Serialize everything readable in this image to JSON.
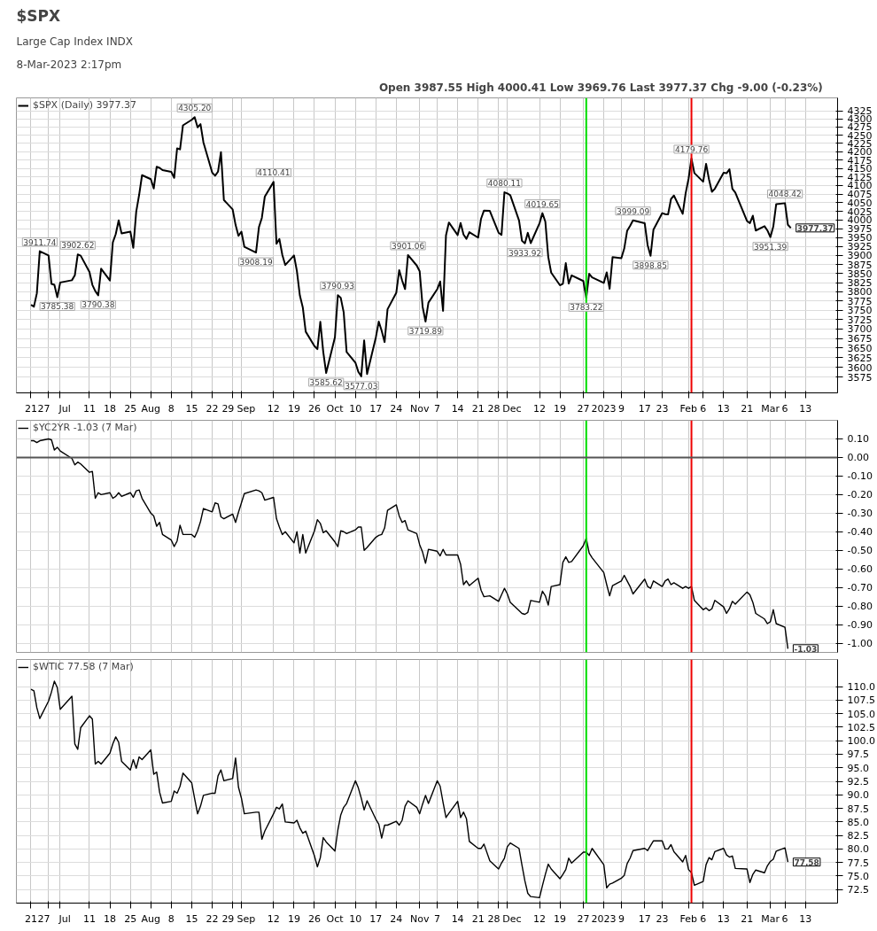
{
  "chart_data": [
    {
      "type": "line",
      "title": "$SPX",
      "subtitle": "8-Mar-2023 2:17pm",
      "log": true,
      "grid": true,
      "legend": "top left",
      "annotations": [
        "Large Cap Index INDX",
        "Open 3987.55  High 4000.41  Low 3969.76  Last 3977.37  Chg -9.00 (-0.23%)",
        {
          "text": "3911.74",
          "x": "2022-06-24",
          "y": 3911.74
        },
        {
          "text": "3785.38",
          "x": "2022-06-30",
          "y": 3785.38
        },
        {
          "text": "3902.62",
          "x": "2022-07-07",
          "y": 3902.62
        },
        {
          "text": "3790.38",
          "x": "2022-07-14",
          "y": 3790.38
        },
        {
          "text": "4305.20",
          "x": "2022-08-16",
          "y": 4305.2
        },
        {
          "text": "3908.19",
          "x": "2022-09-06",
          "y": 3908.19
        },
        {
          "text": "4110.41",
          "x": "2022-09-12",
          "y": 4110.41
        },
        {
          "text": "3585.62",
          "x": "2022-09-30",
          "y": 3585.62
        },
        {
          "text": "3790.93",
          "x": "2022-10-04",
          "y": 3790.93
        },
        {
          "text": "3577.03",
          "x": "2022-10-12",
          "y": 3577.03
        },
        {
          "text": "3901.06",
          "x": "2022-10-28",
          "y": 3901.06
        },
        {
          "text": "3719.89",
          "x": "2022-11-03",
          "y": 3719.89
        },
        {
          "text": "4080.11",
          "x": "2022-11-30",
          "y": 4080.11
        },
        {
          "text": "3933.92",
          "x": "2022-12-07",
          "y": 3933.92
        },
        {
          "text": "4019.65",
          "x": "2022-12-13",
          "y": 4019.65
        },
        {
          "text": "3783.22",
          "x": "2022-12-28",
          "y": 3783.22
        },
        {
          "text": "3999.09",
          "x": "2023-01-13",
          "y": 3999.09
        },
        {
          "text": "3898.85",
          "x": "2023-01-19",
          "y": 3898.85
        },
        {
          "text": "4179.76",
          "x": "2023-02-02",
          "y": 4179.76
        },
        {
          "text": "3951.39",
          "x": "2023-03-01",
          "y": 3951.39
        },
        {
          "text": "4048.42",
          "x": "2023-03-06",
          "y": 4048.42
        },
        {
          "text": "3977.37",
          "x": "2023-03-08",
          "y": 3977.37
        }
      ],
      "xlim": [
        "2022-06-16",
        "2023-03-24"
      ],
      "ylim": [
        3535,
        4365
      ],
      "xticks": [
        {
          "value": "2022-06-21",
          "label": "21"
        },
        {
          "value": "2022-06-27",
          "label": "27"
        },
        {
          "value": "2022-07-01",
          "label": "Jul"
        },
        {
          "value": "2022-07-11",
          "label": "11"
        },
        {
          "value": "2022-07-18",
          "label": "18"
        },
        {
          "value": "2022-07-25",
          "label": "25"
        },
        {
          "value": "2022-08-01",
          "label": "Aug"
        },
        {
          "value": "2022-08-08",
          "label": "8"
        },
        {
          "value": "2022-08-15",
          "label": "15"
        },
        {
          "value": "2022-08-22",
          "label": "22"
        },
        {
          "value": "2022-08-29",
          "label": "29"
        },
        {
          "value": "2022-09-01",
          "label": "Sep"
        },
        {
          "value": "2022-09-12",
          "label": "12"
        },
        {
          "value": "2022-09-19",
          "label": "19"
        },
        {
          "value": "2022-09-26",
          "label": "26"
        },
        {
          "value": "2022-10-03",
          "label": "Oct"
        },
        {
          "value": "2022-10-10",
          "label": "10"
        },
        {
          "value": "2022-10-17",
          "label": "17"
        },
        {
          "value": "2022-10-24",
          "label": "24"
        },
        {
          "value": "2022-11-01",
          "label": "Nov"
        },
        {
          "value": "2022-11-07",
          "label": "7"
        },
        {
          "value": "2022-11-14",
          "label": "14"
        },
        {
          "value": "2022-11-21",
          "label": "21"
        },
        {
          "value": "2022-11-28",
          "label": "28"
        },
        {
          "value": "2022-12-01",
          "label": "Dec"
        },
        {
          "value": "2022-12-12",
          "label": "12"
        },
        {
          "value": "2022-12-19",
          "label": "19"
        },
        {
          "value": "2022-12-27",
          "label": "27"
        },
        {
          "value": "2023-01-03",
          "label": "2023"
        },
        {
          "value": "2023-01-09",
          "label": "9"
        },
        {
          "value": "2023-01-17",
          "label": "17"
        },
        {
          "value": "2023-01-23",
          "label": "23"
        },
        {
          "value": "2023-02-01",
          "label": "Feb"
        },
        {
          "value": "2023-02-06",
          "label": "6"
        },
        {
          "value": "2023-02-13",
          "label": "13"
        },
        {
          "value": "2023-02-21",
          "label": "21"
        },
        {
          "value": "2023-03-01",
          "label": "Mar"
        },
        {
          "value": "2023-03-06",
          "label": "6"
        },
        {
          "value": "2023-03-13",
          "label": "13"
        }
      ],
      "yticks": [
        3575,
        3600,
        3625,
        3650,
        3675,
        3700,
        3725,
        3750,
        3775,
        3800,
        3825,
        3850,
        3875,
        3900,
        3925,
        3950,
        3975,
        4000,
        4025,
        4050,
        4075,
        4100,
        4125,
        4150,
        4175,
        4200,
        4225,
        4250,
        4275,
        4300,
        4325
      ],
      "ref_lines": [
        {
          "axis": "x",
          "value": "2022-12-28",
          "color": "#00dd00"
        },
        {
          "axis": "x",
          "value": "2023-02-02",
          "color": "#ee0000"
        }
      ],
      "x": [
        "2022-06-21",
        "2022-06-22",
        "2022-06-23",
        "2022-06-24",
        "2022-06-27",
        "2022-06-28",
        "2022-06-29",
        "2022-06-30",
        "2022-07-01",
        "2022-07-05",
        "2022-07-06",
        "2022-07-07",
        "2022-07-08",
        "2022-07-11",
        "2022-07-12",
        "2022-07-13",
        "2022-07-14",
        "2022-07-15",
        "2022-07-18",
        "2022-07-19",
        "2022-07-20",
        "2022-07-21",
        "2022-07-22",
        "2022-07-25",
        "2022-07-26",
        "2022-07-27",
        "2022-07-28",
        "2022-07-29",
        "2022-08-01",
        "2022-08-02",
        "2022-08-03",
        "2022-08-04",
        "2022-08-05",
        "2022-08-08",
        "2022-08-09",
        "2022-08-10",
        "2022-08-11",
        "2022-08-12",
        "2022-08-15",
        "2022-08-16",
        "2022-08-17",
        "2022-08-18",
        "2022-08-19",
        "2022-08-22",
        "2022-08-23",
        "2022-08-24",
        "2022-08-25",
        "2022-08-26",
        "2022-08-29",
        "2022-08-30",
        "2022-08-31",
        "2022-09-01",
        "2022-09-02",
        "2022-09-06",
        "2022-09-07",
        "2022-09-08",
        "2022-09-09",
        "2022-09-12",
        "2022-09-13",
        "2022-09-14",
        "2022-09-15",
        "2022-09-16",
        "2022-09-19",
        "2022-09-20",
        "2022-09-21",
        "2022-09-22",
        "2022-09-23",
        "2022-09-26",
        "2022-09-27",
        "2022-09-28",
        "2022-09-29",
        "2022-09-30",
        "2022-10-03",
        "2022-10-04",
        "2022-10-05",
        "2022-10-06",
        "2022-10-07",
        "2022-10-10",
        "2022-10-11",
        "2022-10-12",
        "2022-10-13",
        "2022-10-14",
        "2022-10-17",
        "2022-10-18",
        "2022-10-19",
        "2022-10-20",
        "2022-10-21",
        "2022-10-24",
        "2022-10-25",
        "2022-10-26",
        "2022-10-27",
        "2022-10-28",
        "2022-10-31",
        "2022-11-01",
        "2022-11-02",
        "2022-11-03",
        "2022-11-04",
        "2022-11-07",
        "2022-11-08",
        "2022-11-09",
        "2022-11-10",
        "2022-11-11",
        "2022-11-14",
        "2022-11-15",
        "2022-11-16",
        "2022-11-17",
        "2022-11-18",
        "2022-11-21",
        "2022-11-22",
        "2022-11-23",
        "2022-11-25",
        "2022-11-28",
        "2022-11-29",
        "2022-11-30",
        "2022-12-01",
        "2022-12-02",
        "2022-12-05",
        "2022-12-06",
        "2022-12-07",
        "2022-12-08",
        "2022-12-09",
        "2022-12-12",
        "2022-12-13",
        "2022-12-14",
        "2022-12-15",
        "2022-12-16",
        "2022-12-19",
        "2022-12-20",
        "2022-12-21",
        "2022-12-22",
        "2022-12-23",
        "2022-12-27",
        "2022-12-28",
        "2022-12-29",
        "2022-12-30",
        "2023-01-03",
        "2023-01-04",
        "2023-01-05",
        "2023-01-06",
        "2023-01-09",
        "2023-01-10",
        "2023-01-11",
        "2023-01-12",
        "2023-01-13",
        "2023-01-17",
        "2023-01-18",
        "2023-01-19",
        "2023-01-20",
        "2023-01-23",
        "2023-01-24",
        "2023-01-25",
        "2023-01-26",
        "2023-01-27",
        "2023-01-30",
        "2023-01-31",
        "2023-02-01",
        "2023-02-02",
        "2023-02-03",
        "2023-02-06",
        "2023-02-07",
        "2023-02-08",
        "2023-02-09",
        "2023-02-10",
        "2023-02-13",
        "2023-02-14",
        "2023-02-15",
        "2023-02-16",
        "2023-02-17",
        "2023-02-21",
        "2023-02-22",
        "2023-02-23",
        "2023-02-24",
        "2023-02-27",
        "2023-02-28",
        "2023-03-01",
        "2023-03-02",
        "2023-03-03",
        "2023-03-06",
        "2023-03-07",
        "2023-03-08"
      ],
      "series": [
        {
          "name": "$SPX (Daily) 3977.37",
          "color": "#000000",
          "values": [
            3764.79,
            3759.89,
            3795.73,
            3911.74,
            3900.11,
            3821.55,
            3818.83,
            3785.38,
            3825.33,
            3831.39,
            3845.08,
            3902.62,
            3899.38,
            3854.43,
            3818.8,
            3801.78,
            3790.38,
            3863.16,
            3830.85,
            3936.69,
            3959.9,
            3998.95,
            3961.63,
            3966.84,
            3921.05,
            4023.61,
            4072.43,
            4130.29,
            4118.63,
            4091.19,
            4155.17,
            4151.94,
            4145.19,
            4140.06,
            4122.47,
            4210.24,
            4207.27,
            4280.15,
            4297.14,
            4305.2,
            4274.04,
            4283.74,
            4228.48,
            4137.99,
            4128.73,
            4140.77,
            4199.12,
            4057.66,
            4030.61,
            3986.16,
            3955.0,
            3966.85,
            3924.26,
            3908.19,
            3979.87,
            4006.18,
            4067.36,
            4110.41,
            3932.69,
            3946.01,
            3901.35,
            3873.33,
            3899.89,
            3855.93,
            3789.93,
            3757.99,
            3693.23,
            3655.04,
            3647.29,
            3719.04,
            3640.47,
            3585.62,
            3678.43,
            3790.93,
            3783.28,
            3744.52,
            3639.66,
            3612.39,
            3588.84,
            3577.03,
            3669.91,
            3583.07,
            3677.95,
            3719.98,
            3695.16,
            3665.78,
            3752.75,
            3797.34,
            3859.11,
            3830.6,
            3807.3,
            3901.06,
            3871.98,
            3856.1,
            3759.69,
            3719.89,
            3770.55,
            3806.8,
            3828.11,
            3748.57,
            3956.37,
            3992.93,
            3957.25,
            3991.73,
            3958.79,
            3946.56,
            3965.34,
            3949.94,
            4003.58,
            4027.26,
            4026.12,
            3963.94,
            3957.63,
            4080.11,
            4076.57,
            4071.7,
            3998.84,
            3941.26,
            3933.92,
            3963.51,
            3934.38,
            3990.56,
            4019.65,
            3995.32,
            3895.75,
            3852.36,
            3817.66,
            3821.62,
            3878.44,
            3822.39,
            3844.82,
            3829.25,
            3783.22,
            3849.28,
            3839.5,
            3824.14,
            3852.97,
            3808.1,
            3895.08,
            3892.09,
            3919.25,
            3969.61,
            3983.17,
            3999.09,
            3990.97,
            3928.86,
            3898.85,
            3972.61,
            4019.81,
            4016.95,
            4016.22,
            4060.43,
            4070.56,
            4017.77,
            4076.6,
            4119.21,
            4179.76,
            4136.48,
            4111.08,
            4164.0,
            4117.86,
            4081.5,
            4090.46,
            4137.29,
            4136.13,
            4147.6,
            4090.41,
            4079.09,
            3997.34,
            3991.05,
            4012.32,
            3970.04,
            3982.24,
            3970.15,
            3951.39,
            3981.35,
            4045.64,
            4048.42,
            3986.37,
            3977.37
          ]
        }
      ]
    },
    {
      "type": "line",
      "grid": true,
      "legend": "top left",
      "tick_labels": "y",
      "annotations": [
        {
          "text": "-1.03",
          "x": "2023-03-07",
          "y": -1.03
        }
      ],
      "xlim": [
        "2022-06-16",
        "2023-03-24"
      ],
      "ylim": [
        -1.05,
        0.2
      ],
      "xticks": [
        {
          "value": "2022-06-21",
          "label": null
        },
        {
          "value": "2022-06-27",
          "label": null
        },
        {
          "value": "2022-07-01",
          "label": null
        },
        {
          "value": "2022-07-11",
          "label": null
        },
        {
          "value": "2022-07-18",
          "label": null
        },
        {
          "value": "2022-07-25",
          "label": null
        },
        {
          "value": "2022-08-01",
          "label": null
        },
        {
          "value": "2022-08-08",
          "label": null
        },
        {
          "value": "2022-08-15",
          "label": null
        },
        {
          "value": "2022-08-22",
          "label": null
        },
        {
          "value": "2022-08-29",
          "label": null
        },
        {
          "value": "2022-09-01",
          "label": null
        },
        {
          "value": "2022-09-12",
          "label": null
        },
        {
          "value": "2022-09-19",
          "label": null
        },
        {
          "value": "2022-09-26",
          "label": null
        },
        {
          "value": "2022-10-03",
          "label": null
        },
        {
          "value": "2022-10-10",
          "label": null
        },
        {
          "value": "2022-10-17",
          "label": null
        },
        {
          "value": "2022-10-24",
          "label": null
        },
        {
          "value": "2022-11-01",
          "label": null
        },
        {
          "value": "2022-11-07",
          "label": null
        },
        {
          "value": "2022-11-14",
          "label": null
        },
        {
          "value": "2022-11-21",
          "label": null
        },
        {
          "value": "2022-11-28",
          "label": null
        },
        {
          "value": "2022-12-01",
          "label": null
        },
        {
          "value": "2022-12-12",
          "label": null
        },
        {
          "value": "2022-12-19",
          "label": null
        },
        {
          "value": "2022-12-27",
          "label": null
        },
        {
          "value": "2023-01-03",
          "label": null
        },
        {
          "value": "2023-01-09",
          "label": null
        },
        {
          "value": "2023-01-17",
          "label": null
        },
        {
          "value": "2023-01-23",
          "label": null
        },
        {
          "value": "2023-02-01",
          "label": null
        },
        {
          "value": "2023-02-06",
          "label": null
        },
        {
          "value": "2023-02-13",
          "label": null
        },
        {
          "value": "2023-02-21",
          "label": null
        },
        {
          "value": "2023-03-01",
          "label": null
        },
        {
          "value": "2023-03-06",
          "label": null
        },
        {
          "value": "2023-03-13",
          "label": null
        }
      ],
      "yticks": [
        {
          "value": 0.1,
          "label": "0.10"
        },
        {
          "value": 0,
          "label": "0.00"
        },
        {
          "value": -0.1,
          "label": "-0.10"
        },
        {
          "value": -0.2,
          "label": "-0.20"
        },
        {
          "value": -0.3,
          "label": "-0.30"
        },
        {
          "value": -0.4,
          "label": "-0.40"
        },
        {
          "value": -0.5,
          "label": "-0.50"
        },
        {
          "value": -0.6,
          "label": "-0.60"
        },
        {
          "value": -0.7,
          "label": "-0.70"
        },
        {
          "value": -0.8,
          "label": "-0.80"
        },
        {
          "value": -0.9,
          "label": "-0.90"
        },
        {
          "value": -1.0,
          "label": "-1.00"
        }
      ],
      "ref_lines": [
        {
          "axis": "x",
          "value": "2022-12-28",
          "color": "#00dd00"
        },
        {
          "axis": "x",
          "value": "2023-02-02",
          "color": "#ee0000"
        },
        {
          "axis": "y",
          "value": 0,
          "color": "#555555"
        }
      ],
      "x": [
        "2022-06-21",
        "2022-06-22",
        "2022-06-23",
        "2022-06-24",
        "2022-06-27",
        "2022-06-28",
        "2022-06-29",
        "2022-06-30",
        "2022-07-01",
        "2022-07-05",
        "2022-07-06",
        "2022-07-07",
        "2022-07-08",
        "2022-07-11",
        "2022-07-12",
        "2022-07-13",
        "2022-07-14",
        "2022-07-15",
        "2022-07-18",
        "2022-07-19",
        "2022-07-20",
        "2022-07-21",
        "2022-07-22",
        "2022-07-25",
        "2022-07-26",
        "2022-07-27",
        "2022-07-28",
        "2022-07-29",
        "2022-08-01",
        "2022-08-02",
        "2022-08-03",
        "2022-08-04",
        "2022-08-05",
        "2022-08-08",
        "2022-08-09",
        "2022-08-10",
        "2022-08-11",
        "2022-08-12",
        "2022-08-15",
        "2022-08-16",
        "2022-08-17",
        "2022-08-18",
        "2022-08-19",
        "2022-08-22",
        "2022-08-23",
        "2022-08-24",
        "2022-08-25",
        "2022-08-26",
        "2022-08-29",
        "2022-08-30",
        "2022-08-31",
        "2022-09-01",
        "2022-09-02",
        "2022-09-06",
        "2022-09-07",
        "2022-09-08",
        "2022-09-09",
        "2022-09-12",
        "2022-09-13",
        "2022-09-14",
        "2022-09-15",
        "2022-09-16",
        "2022-09-19",
        "2022-09-20",
        "2022-09-21",
        "2022-09-22",
        "2022-09-23",
        "2022-09-26",
        "2022-09-27",
        "2022-09-28",
        "2022-09-29",
        "2022-09-30",
        "2022-10-03",
        "2022-10-04",
        "2022-10-05",
        "2022-10-06",
        "2022-10-07",
        "2022-10-10",
        "2022-10-11",
        "2022-10-12",
        "2022-10-13",
        "2022-10-14",
        "2022-10-17",
        "2022-10-18",
        "2022-10-19",
        "2022-10-20",
        "2022-10-21",
        "2022-10-24",
        "2022-10-25",
        "2022-10-26",
        "2022-10-27",
        "2022-10-28",
        "2022-10-31",
        "2022-11-01",
        "2022-11-02",
        "2022-11-03",
        "2022-11-04",
        "2022-11-07",
        "2022-11-08",
        "2022-11-09",
        "2022-11-10",
        "2022-11-11",
        "2022-11-14",
        "2022-11-15",
        "2022-11-16",
        "2022-11-17",
        "2022-11-18",
        "2022-11-21",
        "2022-11-22",
        "2022-11-23",
        "2022-11-25",
        "2022-11-28",
        "2022-11-29",
        "2022-11-30",
        "2022-12-01",
        "2022-12-02",
        "2022-12-05",
        "2022-12-06",
        "2022-12-07",
        "2022-12-08",
        "2022-12-09",
        "2022-12-12",
        "2022-12-13",
        "2022-12-14",
        "2022-12-15",
        "2022-12-16",
        "2022-12-19",
        "2022-12-20",
        "2022-12-21",
        "2022-12-22",
        "2022-12-23",
        "2022-12-27",
        "2022-12-28",
        "2022-12-29",
        "2022-12-30",
        "2023-01-03",
        "2023-01-04",
        "2023-01-05",
        "2023-01-06",
        "2023-01-09",
        "2023-01-10",
        "2023-01-11",
        "2023-01-12",
        "2023-01-13",
        "2023-01-17",
        "2023-01-18",
        "2023-01-19",
        "2023-01-20",
        "2023-01-23",
        "2023-01-24",
        "2023-01-25",
        "2023-01-26",
        "2023-01-27",
        "2023-01-30",
        "2023-01-31",
        "2023-02-01",
        "2023-02-02",
        "2023-02-03",
        "2023-02-06",
        "2023-02-07",
        "2023-02-08",
        "2023-02-09",
        "2023-02-10",
        "2023-02-13",
        "2023-02-14",
        "2023-02-15",
        "2023-02-16",
        "2023-02-17",
        "2023-02-21",
        "2023-02-22",
        "2023-02-23",
        "2023-02-24",
        "2023-02-27",
        "2023-02-28",
        "2023-03-01",
        "2023-03-02",
        "2023-03-03",
        "2023-03-06",
        "2023-03-07"
      ],
      "series": [
        {
          "name": "$YC2YR -1.03 (7 Mar)",
          "color": "#000000",
          "values": [
            0.09,
            0.09,
            0.08,
            0.09,
            0.1,
            0.095,
            0.04,
            0.055,
            0.035,
            -0.005,
            -0.04,
            -0.025,
            -0.035,
            -0.08,
            -0.075,
            -0.22,
            -0.19,
            -0.2,
            -0.19,
            -0.22,
            -0.21,
            -0.19,
            -0.21,
            -0.19,
            -0.215,
            -0.18,
            -0.175,
            -0.22,
            -0.3,
            -0.315,
            -0.37,
            -0.35,
            -0.415,
            -0.445,
            -0.48,
            -0.45,
            -0.365,
            -0.415,
            -0.415,
            -0.43,
            -0.395,
            -0.345,
            -0.275,
            -0.293,
            -0.245,
            -0.25,
            -0.32,
            -0.33,
            -0.305,
            -0.35,
            -0.295,
            -0.245,
            -0.195,
            -0.175,
            -0.18,
            -0.19,
            -0.23,
            -0.215,
            -0.33,
            -0.375,
            -0.415,
            -0.4,
            -0.46,
            -0.4,
            -0.515,
            -0.415,
            -0.515,
            -0.395,
            -0.335,
            -0.355,
            -0.405,
            -0.395,
            -0.455,
            -0.48,
            -0.395,
            -0.4,
            -0.41,
            -0.39,
            -0.375,
            -0.375,
            -0.5,
            -0.485,
            -0.43,
            -0.42,
            -0.415,
            -0.38,
            -0.285,
            -0.255,
            -0.315,
            -0.35,
            -0.34,
            -0.39,
            -0.41,
            -0.47,
            -0.51,
            -0.57,
            -0.495,
            -0.505,
            -0.53,
            -0.495,
            -0.525,
            -0.525,
            -0.525,
            -0.575,
            -0.685,
            -0.665,
            -0.69,
            -0.65,
            -0.715,
            -0.75,
            -0.745,
            -0.775,
            -0.74,
            -0.705,
            -0.735,
            -0.78,
            -0.825,
            -0.84,
            -0.845,
            -0.835,
            -0.77,
            -0.78,
            -0.72,
            -0.745,
            -0.795,
            -0.695,
            -0.685,
            -0.565,
            -0.535,
            -0.565,
            -0.56,
            -0.475,
            -0.435,
            -0.515,
            -0.54,
            -0.62,
            -0.685,
            -0.745,
            -0.69,
            -0.665,
            -0.635,
            -0.665,
            -0.695,
            -0.735,
            -0.655,
            -0.695,
            -0.705,
            -0.665,
            -0.695,
            -0.665,
            -0.655,
            -0.685,
            -0.675,
            -0.705,
            -0.695,
            -0.705,
            -0.695,
            -0.77,
            -0.82,
            -0.81,
            -0.825,
            -0.815,
            -0.77,
            -0.805,
            -0.84,
            -0.815,
            -0.775,
            -0.79,
            -0.725,
            -0.74,
            -0.78,
            -0.84,
            -0.87,
            -0.895,
            -0.885,
            -0.82,
            -0.895,
            -0.915,
            -1.03
          ]
        }
      ]
    },
    {
      "type": "line",
      "grid": true,
      "legend": "top left",
      "annotations": [
        {
          "text": "77.58",
          "x": "2023-03-07",
          "y": 77.58
        }
      ],
      "xlim": [
        "2022-06-16",
        "2023-03-24"
      ],
      "ylim": [
        70,
        115
      ],
      "xticks": [
        {
          "value": "2022-06-21",
          "label": "21"
        },
        {
          "value": "2022-06-27",
          "label": "27"
        },
        {
          "value": "2022-07-01",
          "label": "Jul"
        },
        {
          "value": "2022-07-11",
          "label": "11"
        },
        {
          "value": "2022-07-18",
          "label": "18"
        },
        {
          "value": "2022-07-25",
          "label": "25"
        },
        {
          "value": "2022-08-01",
          "label": "Aug"
        },
        {
          "value": "2022-08-08",
          "label": "8"
        },
        {
          "value": "2022-08-15",
          "label": "15"
        },
        {
          "value": "2022-08-22",
          "label": "22"
        },
        {
          "value": "2022-08-29",
          "label": "29"
        },
        {
          "value": "2022-09-01",
          "label": "Sep"
        },
        {
          "value": "2022-09-12",
          "label": "12"
        },
        {
          "value": "2022-09-19",
          "label": "19"
        },
        {
          "value": "2022-09-26",
          "label": "26"
        },
        {
          "value": "2022-10-03",
          "label": "Oct"
        },
        {
          "value": "2022-10-10",
          "label": "10"
        },
        {
          "value": "2022-10-17",
          "label": "17"
        },
        {
          "value": "2022-10-24",
          "label": "24"
        },
        {
          "value": "2022-11-01",
          "label": "Nov"
        },
        {
          "value": "2022-11-07",
          "label": "7"
        },
        {
          "value": "2022-11-14",
          "label": "14"
        },
        {
          "value": "2022-11-21",
          "label": "21"
        },
        {
          "value": "2022-11-28",
          "label": "28"
        },
        {
          "value": "2022-12-01",
          "label": "Dec"
        },
        {
          "value": "2022-12-12",
          "label": "12"
        },
        {
          "value": "2022-12-19",
          "label": "19"
        },
        {
          "value": "2022-12-27",
          "label": "27"
        },
        {
          "value": "2023-01-03",
          "label": "2023"
        },
        {
          "value": "2023-01-09",
          "label": "9"
        },
        {
          "value": "2023-01-17",
          "label": "17"
        },
        {
          "value": "2023-01-23",
          "label": "23"
        },
        {
          "value": "2023-02-01",
          "label": "Feb"
        },
        {
          "value": "2023-02-06",
          "label": "6"
        },
        {
          "value": "2023-02-13",
          "label": "13"
        },
        {
          "value": "2023-02-21",
          "label": "21"
        },
        {
          "value": "2023-03-01",
          "label": "Mar"
        },
        {
          "value": "2023-03-06",
          "label": "6"
        },
        {
          "value": "2023-03-13",
          "label": "13"
        }
      ],
      "yticks": [
        {
          "value": 72.5,
          "label": "72.5"
        },
        {
          "value": 75,
          "label": "75.0"
        },
        {
          "value": 77.5,
          "label": "77.5"
        },
        {
          "value": 80,
          "label": "80.0"
        },
        {
          "value": 82.5,
          "label": "82.5"
        },
        {
          "value": 85,
          "label": "85.0"
        },
        {
          "value": 87.5,
          "label": "87.5"
        },
        {
          "value": 90,
          "label": "90.0"
        },
        {
          "value": 92.5,
          "label": "92.5"
        },
        {
          "value": 95,
          "label": "95.0"
        },
        {
          "value": 97.5,
          "label": "97.5"
        },
        {
          "value": 100,
          "label": "100.0"
        },
        {
          "value": 102.5,
          "label": "102.5"
        },
        {
          "value": 105,
          "label": "105.0"
        },
        {
          "value": 107.5,
          "label": "107.5"
        },
        {
          "value": 110,
          "label": "110.0"
        }
      ],
      "ref_lines": [
        {
          "axis": "x",
          "value": "2022-12-28",
          "color": "#00dd00"
        },
        {
          "axis": "x",
          "value": "2023-02-02",
          "color": "#ee0000"
        }
      ],
      "x": [
        "2022-06-21",
        "2022-06-22",
        "2022-06-23",
        "2022-06-24",
        "2022-06-27",
        "2022-06-28",
        "2022-06-29",
        "2022-06-30",
        "2022-07-01",
        "2022-07-05",
        "2022-07-06",
        "2022-07-07",
        "2022-07-08",
        "2022-07-11",
        "2022-07-12",
        "2022-07-13",
        "2022-07-14",
        "2022-07-15",
        "2022-07-18",
        "2022-07-19",
        "2022-07-20",
        "2022-07-21",
        "2022-07-22",
        "2022-07-25",
        "2022-07-26",
        "2022-07-27",
        "2022-07-28",
        "2022-07-29",
        "2022-08-01",
        "2022-08-02",
        "2022-08-03",
        "2022-08-04",
        "2022-08-05",
        "2022-08-08",
        "2022-08-09",
        "2022-08-10",
        "2022-08-11",
        "2022-08-12",
        "2022-08-15",
        "2022-08-16",
        "2022-08-17",
        "2022-08-18",
        "2022-08-19",
        "2022-08-22",
        "2022-08-23",
        "2022-08-24",
        "2022-08-25",
        "2022-08-26",
        "2022-08-29",
        "2022-08-30",
        "2022-08-31",
        "2022-09-01",
        "2022-09-02",
        "2022-09-06",
        "2022-09-07",
        "2022-09-08",
        "2022-09-09",
        "2022-09-12",
        "2022-09-13",
        "2022-09-14",
        "2022-09-15",
        "2022-09-16",
        "2022-09-19",
        "2022-09-20",
        "2022-09-21",
        "2022-09-22",
        "2022-09-23",
        "2022-09-26",
        "2022-09-27",
        "2022-09-28",
        "2022-09-29",
        "2022-09-30",
        "2022-10-03",
        "2022-10-04",
        "2022-10-05",
        "2022-10-06",
        "2022-10-07",
        "2022-10-10",
        "2022-10-11",
        "2022-10-12",
        "2022-10-13",
        "2022-10-14",
        "2022-10-17",
        "2022-10-18",
        "2022-10-19",
        "2022-10-20",
        "2022-10-21",
        "2022-10-24",
        "2022-10-25",
        "2022-10-26",
        "2022-10-27",
        "2022-10-28",
        "2022-10-31",
        "2022-11-01",
        "2022-11-02",
        "2022-11-03",
        "2022-11-04",
        "2022-11-07",
        "2022-11-08",
        "2022-11-09",
        "2022-11-10",
        "2022-11-11",
        "2022-11-14",
        "2022-11-15",
        "2022-11-16",
        "2022-11-17",
        "2022-11-18",
        "2022-11-21",
        "2022-11-22",
        "2022-11-23",
        "2022-11-25",
        "2022-11-28",
        "2022-11-29",
        "2022-11-30",
        "2022-12-01",
        "2022-12-02",
        "2022-12-05",
        "2022-12-06",
        "2022-12-07",
        "2022-12-08",
        "2022-12-09",
        "2022-12-12",
        "2022-12-13",
        "2022-12-14",
        "2022-12-15",
        "2022-12-16",
        "2022-12-19",
        "2022-12-20",
        "2022-12-21",
        "2022-12-22",
        "2022-12-23",
        "2022-12-27",
        "2022-12-28",
        "2022-12-29",
        "2022-12-30",
        "2023-01-03",
        "2023-01-04",
        "2023-01-05",
        "2023-01-06",
        "2023-01-09",
        "2023-01-10",
        "2023-01-11",
        "2023-01-12",
        "2023-01-13",
        "2023-01-17",
        "2023-01-18",
        "2023-01-19",
        "2023-01-20",
        "2023-01-23",
        "2023-01-24",
        "2023-01-25",
        "2023-01-26",
        "2023-01-27",
        "2023-01-30",
        "2023-01-31",
        "2023-02-01",
        "2023-02-02",
        "2023-02-03",
        "2023-02-06",
        "2023-02-07",
        "2023-02-08",
        "2023-02-09",
        "2023-02-10",
        "2023-02-13",
        "2023-02-14",
        "2023-02-15",
        "2023-02-16",
        "2023-02-17",
        "2023-02-21",
        "2023-02-22",
        "2023-02-23",
        "2023-02-24",
        "2023-02-27",
        "2023-02-28",
        "2023-03-01",
        "2023-03-02",
        "2023-03-03",
        "2023-03-06",
        "2023-03-07"
      ],
      "series": [
        {
          "name": "$WTIC 77.58 (7 Mar)",
          "color": "#000000",
          "values": [
            109.5,
            109.2,
            106.1,
            104.1,
            107.3,
            109.0,
            111.0,
            109.8,
            105.8,
            108.2,
            99.4,
            98.4,
            102.4,
            104.6,
            104.0,
            95.7,
            96.2,
            95.7,
            97.7,
            99.4,
            100.7,
            99.7,
            96.2,
            94.6,
            96.5,
            94.9,
            97.0,
            96.5,
            98.3,
            93.8,
            94.2,
            90.5,
            88.5,
            88.8,
            90.7,
            90.3,
            91.6,
            94.0,
            92.2,
            89.3,
            86.5,
            87.9,
            89.9,
            90.3,
            90.3,
            93.5,
            94.6,
            92.6,
            93.0,
            96.8,
            91.4,
            89.4,
            86.5,
            86.8,
            86.8,
            81.8,
            83.3,
            86.5,
            87.7,
            87.4,
            88.3,
            85.0,
            84.8,
            85.3,
            83.9,
            82.9,
            83.3,
            78.7,
            76.7,
            78.4,
            82.1,
            81.3,
            79.6,
            83.5,
            86.3,
            87.7,
            88.4,
            92.6,
            91.3,
            89.4,
            87.2,
            88.9,
            85.5,
            84.6,
            82.0,
            84.4,
            84.4,
            85.1,
            84.4,
            85.3,
            87.9,
            88.9,
            87.7,
            86.5,
            88.3,
            89.9,
            88.4,
            92.6,
            91.6,
            88.6,
            85.8,
            86.6,
            88.8,
            85.8,
            86.8,
            85.6,
            81.4,
            80.1,
            80.1,
            80.9,
            77.8,
            76.3,
            77.4,
            78.3,
            80.4,
            81.1,
            80.1,
            77.0,
            74.1,
            71.8,
            71.2,
            71.0,
            73.2,
            75.3,
            77.2,
            76.3,
            74.5,
            75.3,
            76.2,
            78.3,
            77.4,
            79.4,
            79.4,
            78.8,
            80.1,
            77.1,
            72.8,
            73.5,
            73.7,
            74.6,
            75.1,
            77.3,
            78.3,
            79.7,
            80.1,
            79.7,
            80.6,
            81.5,
            81.5,
            80.0,
            80.0,
            80.8,
            79.5,
            77.6,
            78.8,
            76.2,
            75.6,
            73.3,
            74.0,
            77.1,
            78.4,
            78.0,
            79.5,
            80.1,
            78.9,
            78.5,
            78.7,
            76.4,
            76.3,
            73.8,
            75.3,
            76.1,
            75.6,
            76.9,
            77.7,
            78.1,
            79.6,
            80.2,
            77.58
          ]
        }
      ]
    }
  ]
}
